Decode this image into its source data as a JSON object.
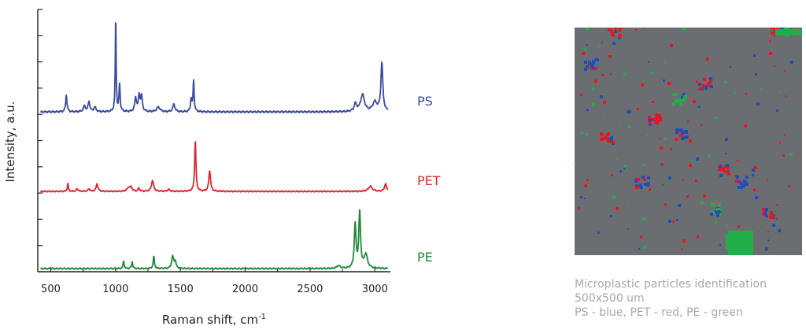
{
  "chart_data": {
    "type": "line",
    "xlabel": "Raman shift, cm",
    "xlabel_superscript": "-1",
    "ylabel": "Intensity, a.u.",
    "xlim": [
      400,
      3120
    ],
    "xticks": [
      "500",
      "1000",
      "1500",
      "2000",
      "2500",
      "3000"
    ],
    "grid": false,
    "series": [
      {
        "name": "PS",
        "color": "#3a4a9f",
        "baseline": 0.0,
        "peaks": [
          [
            620,
            0.18,
            6
          ],
          [
            760,
            0.06,
            10
          ],
          [
            795,
            0.11,
            8
          ],
          [
            840,
            0.05,
            10
          ],
          [
            1001,
            1.0,
            4
          ],
          [
            1031,
            0.3,
            5
          ],
          [
            1155,
            0.15,
            8
          ],
          [
            1182,
            0.17,
            7
          ],
          [
            1200,
            0.16,
            8
          ],
          [
            1330,
            0.05,
            15
          ],
          [
            1450,
            0.08,
            10
          ],
          [
            1583,
            0.14,
            6
          ],
          [
            1602,
            0.33,
            5
          ],
          [
            2850,
            0.08,
            12
          ],
          [
            2905,
            0.18,
            18
          ],
          [
            3000,
            0.1,
            20
          ],
          [
            3054,
            0.52,
            9
          ]
        ]
      },
      {
        "name": "PET",
        "color": "#d8282e",
        "peaks": [
          [
            632,
            0.12,
            5
          ],
          [
            705,
            0.04,
            8
          ],
          [
            795,
            0.04,
            8
          ],
          [
            857,
            0.12,
            8
          ],
          [
            1100,
            0.06,
            12
          ],
          [
            1120,
            0.06,
            10
          ],
          [
            1180,
            0.05,
            7
          ],
          [
            1285,
            0.17,
            10
          ],
          [
            1410,
            0.03,
            10
          ],
          [
            1615,
            0.8,
            6
          ],
          [
            1726,
            0.33,
            8
          ],
          [
            2965,
            0.08,
            18
          ],
          [
            3082,
            0.12,
            9
          ]
        ]
      },
      {
        "name": "PE",
        "color": "#1e8a36",
        "peaks": [
          [
            1062,
            0.11,
            5
          ],
          [
            1128,
            0.1,
            5
          ],
          [
            1295,
            0.17,
            6
          ],
          [
            1440,
            0.17,
            9
          ],
          [
            1460,
            0.1,
            8
          ],
          [
            2720,
            0.04,
            15
          ],
          [
            2848,
            0.62,
            8
          ],
          [
            2883,
            0.8,
            8
          ],
          [
            2930,
            0.2,
            15
          ]
        ]
      }
    ]
  },
  "particle_map": {
    "background": "#6b6e70",
    "legend": {
      "PS": "#1f4fb5",
      "PET": "#e01a24",
      "PE": "#1fae4a"
    }
  },
  "caption": {
    "line1": "Microplastic particles identification",
    "line2": "500x500 um",
    "line3": "PS - blue, PET - red, PE - green"
  }
}
